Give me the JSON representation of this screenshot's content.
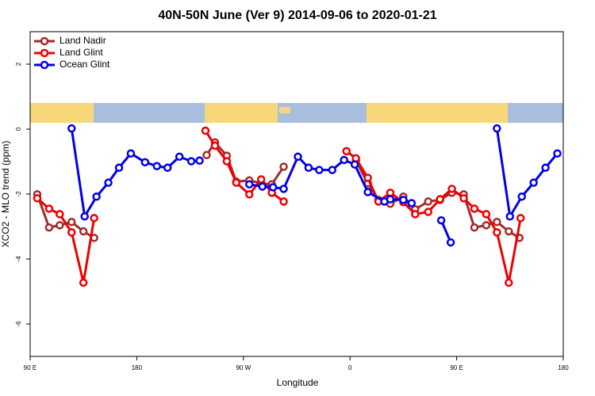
{
  "chart_data": {
    "type": "line",
    "title": "40N-50N June (Ver 9)   2014-09-06 to 2020-01-21",
    "x_label": "Longitude",
    "y_label": "XCO2 - MLO trend (ppm)",
    "xlim": [
      90,
      540
    ],
    "xticks": [
      {
        "value": 90,
        "label": "90 E"
      },
      180,
      {
        "value": 270,
        "label": "90 W"
      },
      {
        "value": 360,
        "label": "0"
      },
      {
        "value": 450,
        "label": "90 E"
      },
      {
        "value": 540,
        "label": "180"
      }
    ],
    "ylim": [
      -7,
      3
    ],
    "yticks": [
      -6,
      -4,
      -2,
      0,
      2
    ],
    "legend": "topleft",
    "series": [
      {
        "name": "Land Nadir",
        "color": "#a52a2a",
        "x": [
          96,
          106,
          115,
          125,
          135,
          144,
          null,
          239,
          246,
          256,
          264,
          275,
          285,
          294,
          304,
          null,
          365,
          375,
          384,
          394,
          405,
          415,
          426,
          436,
          446,
          456,
          465,
          475,
          484,
          494,
          503
        ],
        "values": [
          -2.01,
          -3.03,
          -2.96,
          -2.86,
          -3.15,
          -3.35,
          null,
          -0.8,
          -0.41,
          -0.82,
          -1.62,
          -1.58,
          -1.67,
          -1.7,
          -1.16,
          null,
          -0.97,
          -1.67,
          -2.18,
          -2.3,
          -2.08,
          -2.47,
          -2.23,
          -2.18,
          -1.96,
          -2.01,
          -3.03,
          -2.96,
          -2.86,
          -3.15,
          -3.35
        ]
      },
      {
        "name": "Land Glint",
        "color": "#ee0000",
        "x": [
          96,
          106,
          115,
          125,
          135,
          144,
          null,
          238,
          246,
          256,
          264,
          275,
          285,
          294,
          304,
          null,
          357,
          365,
          375,
          384,
          394,
          405,
          415,
          426,
          436,
          446,
          456,
          465,
          475,
          484,
          494,
          504
        ],
        "values": [
          -2.13,
          -2.45,
          -2.62,
          -3.18,
          -4.73,
          -2.74,
          null,
          -0.05,
          -0.51,
          -0.99,
          -1.65,
          -2.01,
          -1.55,
          -1.96,
          -2.23,
          null,
          -0.68,
          -0.9,
          -1.5,
          -2.23,
          -1.96,
          -2.25,
          -2.62,
          -2.55,
          -2.16,
          -1.84,
          -2.13,
          -2.45,
          -2.62,
          -3.18,
          -4.73,
          -2.74
        ]
      },
      {
        "name": "Ocean Glint",
        "color": "#0000ee",
        "x": [
          125,
          136,
          146,
          156,
          165,
          175,
          187,
          197,
          206,
          216,
          226,
          233,
          null,
          275,
          286,
          295,
          304,
          316,
          325,
          334,
          345,
          355,
          364,
          375,
          389,
          394,
          405,
          412,
          null,
          437,
          445,
          null,
          484,
          495,
          505,
          515,
          525,
          535
        ],
        "values": [
          0.02,
          -2.69,
          -2.08,
          -1.65,
          -1.19,
          -0.75,
          -1.02,
          -1.14,
          -1.19,
          -0.85,
          -0.99,
          -0.97,
          null,
          -1.7,
          -1.77,
          -1.79,
          -1.84,
          -0.85,
          -1.19,
          -1.26,
          -1.26,
          -0.95,
          -1.09,
          -1.94,
          -2.23,
          -2.16,
          -2.18,
          -2.28,
          null,
          -2.81,
          -3.49,
          null,
          0.02,
          -2.69,
          -2.08,
          -1.65,
          -1.19,
          -0.75
        ]
      }
    ]
  }
}
